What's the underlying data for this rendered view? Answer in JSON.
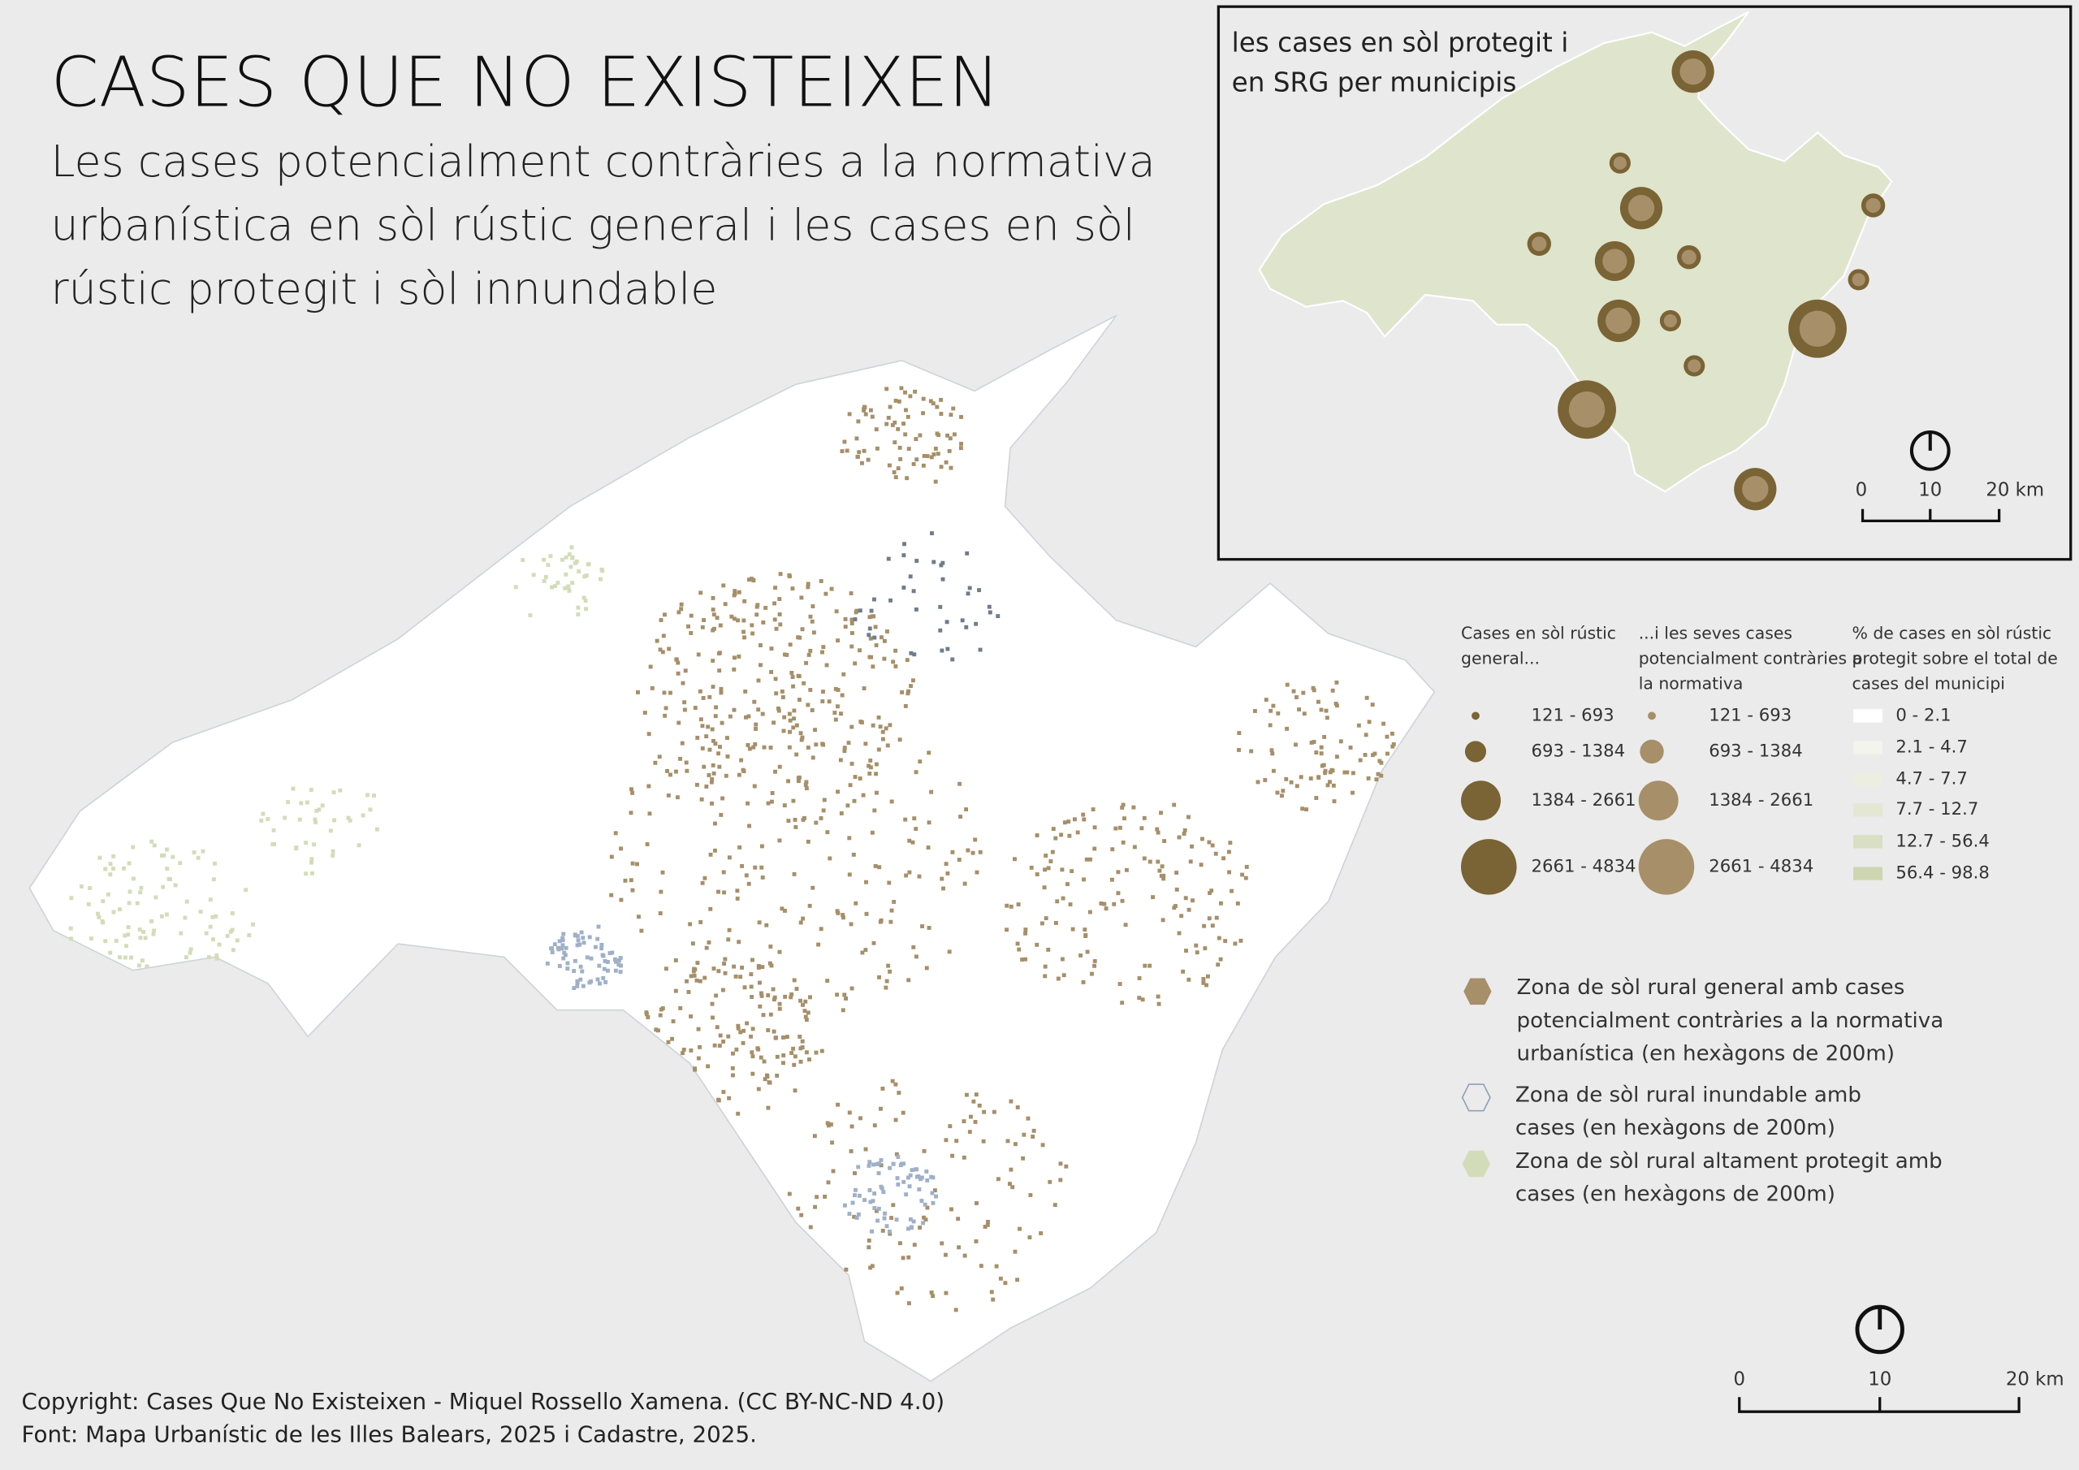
{
  "title": "CASES QUE NO EXISTEIXEN",
  "subtitle_lines": [
    "Les cases potencialment contràries a la normativa",
    "urbanística en sòl rústic general i les cases en sòl",
    "rústic protegit i sòl innundable"
  ],
  "inset": {
    "title_lines": [
      "les cases en sòl protegit i",
      "en SRG per municipis"
    ],
    "scale_labels": [
      "0",
      "10",
      "20 km"
    ]
  },
  "legend": {
    "general": {
      "heading_lines": [
        "Cases en sòl rústic",
        "general..."
      ],
      "classes": [
        "121 - 693",
        "693 - 1384",
        "1384 - 2661",
        "2661 - 4834"
      ]
    },
    "contrary": {
      "heading_lines": [
        "...i les seves cases",
        "potencialment contràries a",
        "la normativa"
      ],
      "classes": [
        "121 - 693",
        "693 - 1384",
        "1384 - 2661",
        "2661 - 4834"
      ]
    },
    "protected_pct": {
      "heading_lines": [
        "% de cases en sòl rústic",
        "protegit sobre el total de",
        "cases del municipi"
      ],
      "classes": [
        "0 - 2.1",
        "2.1 - 4.7",
        "4.7 - 7.7",
        "7.7 - 12.7",
        "12.7 - 56.4",
        "56.4 - 98.8"
      ]
    }
  },
  "zones": [
    {
      "lines": [
        "Zona de sòl rural general amb cases",
        "potencialment contràries a la normativa",
        "urbanística (en hexàgons de 200m)"
      ]
    },
    {
      "lines": [
        "Zona de sòl rural inundable amb",
        "cases (en hexàgons de 200m)"
      ]
    },
    {
      "lines": [
        "Zona de sòl rural altament protegit amb",
        "cases (en hexàgons de 200m)"
      ]
    }
  ],
  "scale_labels": [
    "0",
    "10",
    "20 km"
  ],
  "footer_lines": [
    "Copyright: Cases Que No Existeixen - Miquel Rossello Xamena. (CC BY-NC-ND 4.0)",
    "Font: Mapa Urbanístic de les Illes Balears, 2025 i Cadastre, 2025."
  ]
}
